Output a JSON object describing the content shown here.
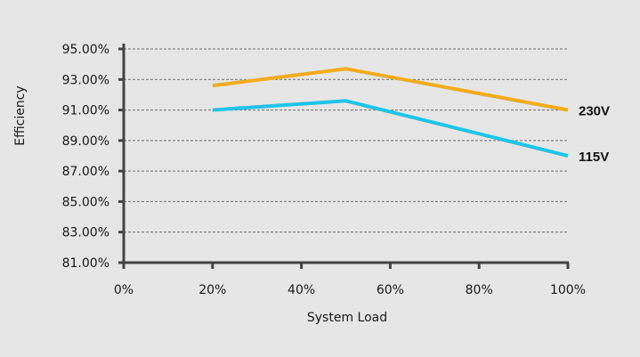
{
  "chart_data": {
    "type": "line",
    "xlabel": "System Load",
    "ylabel": "Efficiency",
    "x_ticks": [
      "0%",
      "20%",
      "40%",
      "60%",
      "80%",
      "100%"
    ],
    "y_ticks": [
      "81.00%",
      "83.00%",
      "85.00%",
      "87.00%",
      "89.00%",
      "91.00%",
      "93.00%",
      "95.00%"
    ],
    "xlim": [
      0,
      100
    ],
    "ylim": [
      81,
      95
    ],
    "grid": true,
    "series": [
      {
        "name": "230V",
        "color": "#f2ac1d",
        "x": [
          20,
          50,
          100
        ],
        "y": [
          92.6,
          93.7,
          91.0
        ]
      },
      {
        "name": "115V",
        "color": "#1fc4e8",
        "x": [
          20,
          50,
          100
        ],
        "y": [
          91.0,
          91.6,
          88.0
        ]
      }
    ]
  }
}
